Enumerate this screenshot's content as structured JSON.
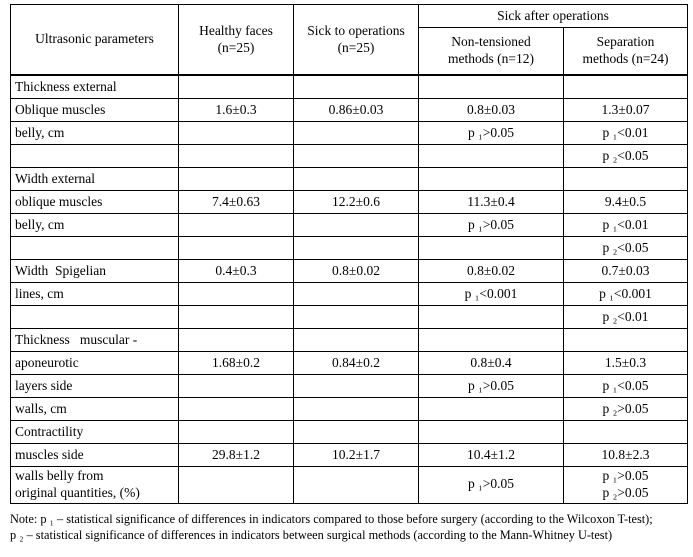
{
  "table": {
    "header": {
      "param": "Ultrasonic parameters",
      "healthy": "Healthy faces\n(n=25)",
      "sick_to": "Sick to operations\n(n=25)",
      "sick_after": "Sick after operations",
      "non_tensioned": "Non-tensioned\nmethods (n=12)",
      "separation": "Separation\nmethods (n=24)"
    },
    "rows": [
      [
        "Thickness external",
        "",
        "",
        "",
        ""
      ],
      [
        "Oblique muscles",
        "1.6±0.3",
        "0.86±0.03",
        "0.8±0.03",
        "1.3±0.07"
      ],
      [
        "belly, cm",
        "",
        "",
        "p ₁>0.05",
        "p ₁<0.01"
      ],
      [
        "",
        "",
        "",
        "",
        "p ₂<0.05"
      ],
      [
        "Width external",
        "",
        "",
        "",
        ""
      ],
      [
        "oblique muscles",
        "7.4±0.63",
        "12.2±0.6",
        "11.3±0.4",
        "9.4±0.5"
      ],
      [
        "belly, cm",
        "",
        "",
        "p ₁>0.05",
        "p ₁<0.01"
      ],
      [
        "",
        "",
        "",
        "",
        "p ₂<0.05"
      ],
      [
        "Width  Spigelian",
        "0.4±0.3",
        "0.8±0.02",
        "0.8±0.02",
        "0.7±0.03"
      ],
      [
        "lines, cm",
        "",
        "",
        "p ₁<0.001",
        "p ₁<0.001"
      ],
      [
        "",
        "",
        "",
        "",
        "p ₂<0.01"
      ],
      [
        "Thickness   muscular -",
        "",
        "",
        "",
        ""
      ],
      [
        "aponeurotic",
        "1.68±0.2",
        "0.84±0.2",
        "0.8±0.4",
        "1.5±0.3"
      ],
      [
        "layers side",
        "",
        "",
        "p ₁>0.05",
        "p ₁<0.05"
      ],
      [
        "walls, cm",
        "",
        "",
        "",
        "p ₂>0.05"
      ],
      [
        "Contractility",
        "",
        "",
        "",
        ""
      ],
      [
        "muscles side",
        "29.8±1.2",
        "10.2±1.7",
        "10.4±1.2",
        "10.8±2.3"
      ],
      [
        "walls belly from\noriginal quantities, (%)",
        "",
        "",
        "p ₁>0.05",
        "p ₁>0.05\np ₂>0.05"
      ]
    ]
  },
  "note": {
    "line1": "Note: p ₁ – statistical significance of differences in indicators compared to those before surgery (according to the Wilcoxon T-test);",
    "line2": "p ₂ – statistical significance of differences in indicators between surgical methods (according to the Mann-Whitney U-test)"
  }
}
